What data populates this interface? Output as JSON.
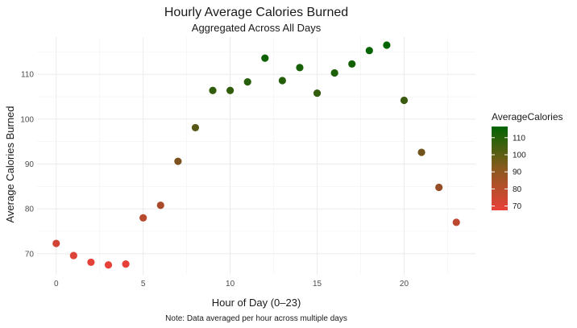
{
  "chart_data": {
    "type": "scatter",
    "title": "Hourly Average Calories Burned",
    "subtitle": "Aggregated Across All Days",
    "xlabel": "Hour of Day (0–23)",
    "ylabel": "Average Calories Burned",
    "caption": "Note: Data averaged per hour across multiple days",
    "xlim": [
      -1.1,
      24.1
    ],
    "ylim": [
      65.3,
      118.3
    ],
    "x_ticks": [
      0,
      5,
      10,
      15,
      20
    ],
    "y_ticks": [
      70,
      80,
      90,
      100,
      110
    ],
    "grid": true,
    "legend": {
      "title": "AverageCalories",
      "position": "right",
      "ticks": [
        70,
        80,
        90,
        100,
        110
      ],
      "range": [
        67.5,
        116.5
      ],
      "color_low": "#e8413a",
      "color_high": "#006400"
    },
    "x": [
      0,
      1,
      2,
      3,
      4,
      5,
      6,
      7,
      8,
      9,
      10,
      11,
      12,
      13,
      14,
      15,
      16,
      17,
      18,
      19,
      20,
      21,
      22,
      23
    ],
    "values": [
      72.3,
      69.6,
      68.1,
      67.5,
      67.7,
      78.0,
      80.8,
      90.6,
      98.1,
      106.4,
      106.4,
      108.3,
      113.6,
      108.6,
      111.5,
      105.8,
      110.3,
      112.3,
      115.3,
      116.5,
      104.2,
      92.6,
      84.8,
      77.0
    ]
  }
}
